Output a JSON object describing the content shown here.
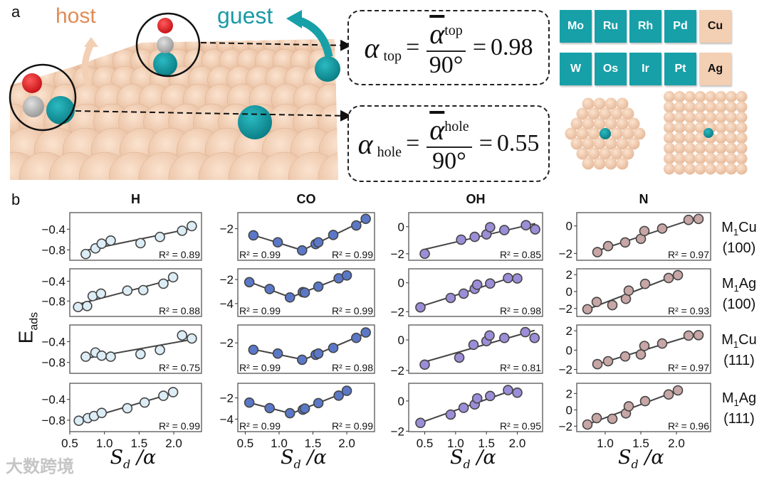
{
  "panel_a": {
    "label": "a",
    "host_label": "host",
    "guest_label": "guest",
    "equations": [
      {
        "symbol": "α",
        "sub": "top",
        "eq": "=",
        "den": "90°",
        "value": "0.98"
      },
      {
        "symbol": "α",
        "sub": "hole",
        "eq": "=",
        "den": "90°",
        "value": "0.55"
      }
    ],
    "metals": [
      {
        "name": "Mo",
        "kind": "guest"
      },
      {
        "name": "Ru",
        "kind": "guest"
      },
      {
        "name": "Rh",
        "kind": "guest"
      },
      {
        "name": "Pd",
        "kind": "guest"
      },
      {
        "name": "Cu",
        "kind": "host"
      },
      {
        "name": "W",
        "kind": "guest"
      },
      {
        "name": "Os",
        "kind": "guest"
      },
      {
        "name": "Ir",
        "kind": "guest"
      },
      {
        "name": "Pt",
        "kind": "guest"
      },
      {
        "name": "Ag",
        "kind": "host"
      }
    ],
    "colors": {
      "guest": "#17a0a8",
      "host": "#f3cfb3",
      "host_text": "#e08c55",
      "oxygen": "#e8282c",
      "carbon": "#b9b9b9"
    }
  },
  "panel_b": {
    "label": "b",
    "ylabel": {
      "main": "E",
      "sub": "ads"
    },
    "xlabel": {
      "main": "S",
      "sub": "d",
      "tail": " /α"
    },
    "row_labels": [
      {
        "m": "M",
        "n": "1",
        "host": "Cu",
        "facet": "(100)"
      },
      {
        "m": "M",
        "n": "1",
        "host": "Ag",
        "facet": "(100)"
      },
      {
        "m": "M",
        "n": "1",
        "host": "Cu",
        "facet": "(111)"
      },
      {
        "m": "M",
        "n": "1",
        "host": "Ag",
        "facet": "(111)"
      }
    ]
  },
  "watermark": "大数跨境",
  "chart_data": {
    "type": "scatter",
    "xlabel": "S_d / α",
    "ylabel": "E_ads",
    "columns": [
      {
        "title": "H",
        "color": "#dcedf6",
        "xlim": [
          0.5,
          2.4
        ],
        "xticks": [
          "0.5",
          "1.0",
          "1.5",
          "2.0"
        ],
        "split": false,
        "panels": [
          {
            "ylim": [
              -1.0,
              -0.08
            ],
            "yticks": [
              "-0.4",
              "-0.8"
            ],
            "x": [
              0.73,
              0.87,
              0.96,
              1.09,
              1.52,
              1.8,
              2.12,
              2.26
            ],
            "y": [
              -0.88,
              -0.77,
              -0.68,
              -0.62,
              -0.67,
              -0.55,
              -0.43,
              -0.34
            ],
            "r2": [
              "R² = 0.89"
            ]
          },
          {
            "ylim": [
              -1.11,
              -0.15
            ],
            "yticks": [
              "-0.4",
              "-0.8"
            ],
            "x": [
              0.62,
              0.75,
              0.83,
              0.95,
              1.33,
              1.56,
              1.85,
              1.99
            ],
            "y": [
              -0.92,
              -0.9,
              -0.7,
              -0.65,
              -0.59,
              -0.58,
              -0.45,
              -0.32
            ],
            "r2": [
              "R² = 0.88"
            ]
          },
          {
            "ylim": [
              -1.01,
              -0.08
            ],
            "yticks": [
              "-0.4",
              "-0.8"
            ],
            "x": [
              0.73,
              0.87,
              0.96,
              1.09,
              1.52,
              1.8,
              2.12,
              2.26
            ],
            "y": [
              -0.69,
              -0.61,
              -0.67,
              -0.69,
              -0.64,
              -0.56,
              -0.28,
              -0.34
            ],
            "r2": [
              "R² = 0.75"
            ]
          },
          {
            "ylim": [
              -1.02,
              -0.09
            ],
            "yticks": [
              "-0.4",
              "-0.8"
            ],
            "x": [
              0.63,
              0.76,
              0.85,
              0.96,
              1.33,
              1.58,
              1.85,
              1.99
            ],
            "y": [
              -0.81,
              -0.76,
              -0.72,
              -0.66,
              -0.57,
              -0.46,
              -0.33,
              -0.26
            ],
            "r2": [
              "R² = 0.99"
            ]
          }
        ]
      },
      {
        "title": "CO",
        "color": "#5b78c8",
        "xlim": [
          0.39,
          2.41
        ],
        "xticks": [
          "0.5",
          "1.0",
          "1.5",
          "2.0"
        ],
        "split": true,
        "panels": [
          {
            "ylim": [
              -4.53,
              -0.71
            ],
            "yticks": [
              "-2"
            ],
            "x": [
              0.62,
              0.98,
              1.34,
              1.54,
              1.58,
              1.8,
              2.14,
              2.28
            ],
            "y": [
              -2.53,
              -3.09,
              -3.74,
              -3.23,
              -3.09,
              -2.5,
              -1.74,
              -1.21
            ],
            "r2": [
              "R² = 0.99",
              "R² = 0.99"
            ]
          },
          {
            "ylim": [
              -5.07,
              -1.11
            ],
            "yticks": [
              "-2",
              "-4"
            ],
            "x": [
              0.56,
              0.86,
              1.16,
              1.35,
              1.38,
              1.58,
              1.88,
              2.0
            ],
            "y": [
              -2.22,
              -2.79,
              -3.49,
              -3.05,
              -3.09,
              -2.59,
              -1.9,
              -1.66
            ],
            "r2": [
              "R² = 0.99",
              "R² = 0.99"
            ]
          },
          {
            "ylim": [
              -4.43,
              -0.57
            ],
            "yticks": [
              "-2"
            ],
            "x": [
              0.62,
              0.98,
              1.34,
              1.54,
              1.58,
              1.8,
              2.14,
              2.28
            ],
            "y": [
              -2.55,
              -2.85,
              -3.35,
              -2.95,
              -2.85,
              -2.4,
              -1.6,
              -1.17
            ],
            "r2": [
              "R² = 0.99",
              "R² = 0.98"
            ]
          },
          {
            "ylim": [
              -5.18,
              -0.62
            ],
            "yticks": [
              "-2",
              "-4"
            ],
            "x": [
              0.56,
              0.86,
              1.16,
              1.35,
              1.38,
              1.58,
              1.88,
              2.0
            ],
            "y": [
              -2.44,
              -2.96,
              -3.44,
              -3.11,
              -3.0,
              -2.49,
              -1.78,
              -1.33
            ],
            "r2": [
              "R² = 0.99",
              "R² = 0.99"
            ]
          }
        ]
      },
      {
        "title": "OH",
        "color": "#9c8dd8",
        "xlim": [
          0.24,
          2.41
        ],
        "xticks": [
          "0.5",
          "1.0",
          "1.5",
          "2.0"
        ],
        "split": false,
        "panels": [
          {
            "ylim": [
              -2.48,
              1.04
            ],
            "yticks": [
              "0",
              "-2"
            ],
            "x": [
              0.5,
              1.09,
              1.31,
              1.5,
              1.56,
              1.79,
              2.14,
              2.29
            ],
            "y": [
              -2.0,
              -0.96,
              -0.75,
              -0.57,
              -0.04,
              -0.25,
              0.11,
              -0.2
            ],
            "r2": [
              "R² = 0.85"
            ]
          },
          {
            "ylim": [
              -2.33,
              0.97
            ],
            "yticks": [
              "0",
              "-2"
            ],
            "x": [
              0.43,
              0.92,
              1.13,
              1.31,
              1.35,
              1.56,
              1.85,
              2.0
            ],
            "y": [
              -1.7,
              -1.05,
              -0.75,
              -0.42,
              -0.13,
              -0.05,
              0.33,
              0.3
            ],
            "r2": [
              "R² = 0.98"
            ]
          },
          {
            "ylim": [
              -2.19,
              0.98
            ],
            "yticks": [
              "0",
              "-2"
            ],
            "x": [
              0.5,
              1.06,
              1.29,
              1.5,
              1.55,
              1.79,
              2.13,
              2.28
            ],
            "y": [
              -1.62,
              -1.16,
              -0.32,
              -0.08,
              0.29,
              0.13,
              0.51,
              0.13
            ],
            "r2": [
              "R² = 0.81"
            ]
          },
          {
            "ylim": [
              -2.03,
              1.17
            ],
            "yticks": [
              "0",
              "-2"
            ],
            "x": [
              0.43,
              0.92,
              1.13,
              1.31,
              1.35,
              1.56,
              1.85,
              2.0
            ],
            "y": [
              -1.45,
              -0.9,
              -0.45,
              -0.23,
              0.17,
              0.33,
              0.72,
              0.55
            ],
            "r2": [
              "R² = 0.95"
            ]
          }
        ]
      },
      {
        "title": "N",
        "color": "#c8a6a6",
        "xlim": [
          0.6,
          2.48
        ],
        "xticks": [
          "1.0",
          "1.5",
          "2.0"
        ],
        "split": false,
        "panels": [
          {
            "ylim": [
              -2.5,
              0.97
            ],
            "yticks": [
              "0",
              "-2"
            ],
            "x": [
              0.89,
              1.04,
              1.28,
              1.5,
              1.55,
              1.8,
              2.17,
              2.31
            ],
            "y": [
              -1.91,
              -1.47,
              -1.2,
              -0.94,
              -0.37,
              -0.19,
              0.44,
              0.51
            ],
            "r2": [
              "R² = 0.97"
            ]
          },
          {
            "ylim": [
              -2.94,
              2.69
            ],
            "yticks": [
              "2",
              "0",
              "-2"
            ],
            "x": [
              0.75,
              0.88,
              1.1,
              1.29,
              1.33,
              1.56,
              1.89,
              2.02
            ],
            "y": [
              -2.09,
              -1.23,
              -1.6,
              -0.86,
              0.11,
              0.91,
              1.6,
              1.94
            ],
            "r2": [
              "R² = 0.93"
            ]
          },
          {
            "ylim": [
              -2.4,
              2.6
            ],
            "yticks": [
              "2",
              "0",
              "-2"
            ],
            "x": [
              0.89,
              1.04,
              1.28,
              1.5,
              1.55,
              1.8,
              2.17,
              2.31
            ],
            "y": [
              -1.45,
              -1.15,
              -0.65,
              -0.45,
              0.43,
              0.68,
              1.5,
              1.55
            ],
            "r2": [
              "R² = 0.97"
            ]
          },
          {
            "ylim": [
              -2.67,
              3.25
            ],
            "yticks": [
              "2",
              "0",
              "-2"
            ],
            "x": [
              0.75,
              0.88,
              1.1,
              1.29,
              1.33,
              1.56,
              1.89,
              2.02
            ],
            "y": [
              -1.8,
              -1.01,
              -1.1,
              -0.43,
              0.43,
              1.07,
              1.88,
              2.38
            ],
            "r2": [
              "R² = 0.96"
            ]
          }
        ]
      }
    ]
  }
}
